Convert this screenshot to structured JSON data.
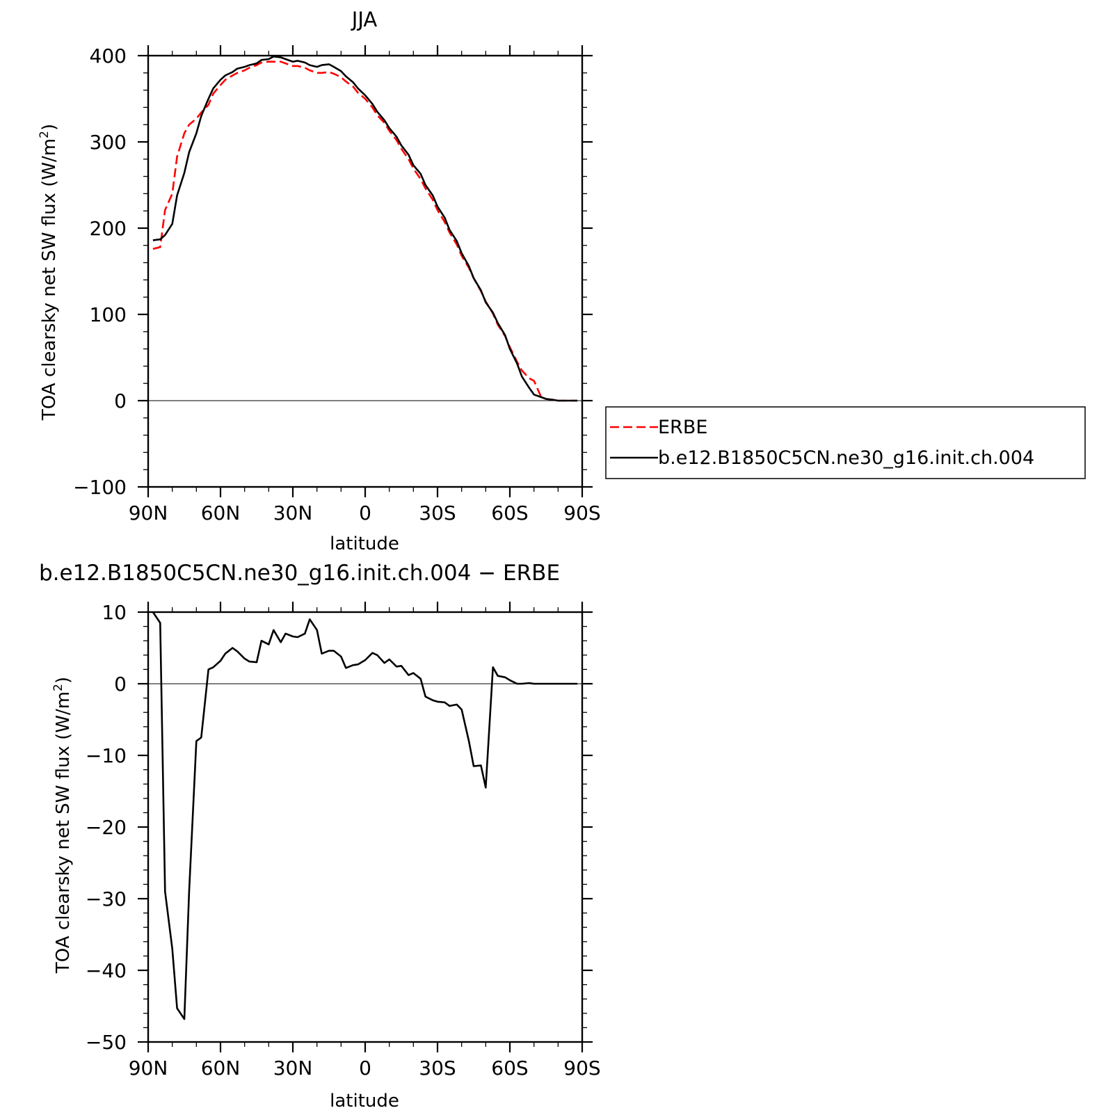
{
  "chart_data": [
    {
      "type": "line",
      "title": "JJA",
      "xlabel": "latitude",
      "ylabel": "TOA clearsky net SW flux (W/m",
      "ylabel_sup": "2",
      "ylabel_close": ")",
      "xlim": [
        90,
        -90
      ],
      "ylim": [
        -100,
        400
      ],
      "x_ticks": [
        {
          "value": 90,
          "label": "90N"
        },
        {
          "value": 60,
          "label": "60N"
        },
        {
          "value": 30,
          "label": "30N"
        },
        {
          "value": 0,
          "label": "0"
        },
        {
          "value": -30,
          "label": "30S"
        },
        {
          "value": -60,
          "label": "60S"
        },
        {
          "value": -90,
          "label": "90S"
        }
      ],
      "y_ticks": [
        {
          "value": 400,
          "label": "400"
        },
        {
          "value": 300,
          "label": "300"
        },
        {
          "value": 200,
          "label": "200"
        },
        {
          "value": 100,
          "label": "100"
        },
        {
          "value": 0,
          "label": "0"
        },
        {
          "value": -100,
          "label": "−100"
        }
      ],
      "legend_position": "right",
      "series": [
        {
          "name": "ERBE",
          "color": "#ff0000",
          "dash": true,
          "x": [
            88,
            85,
            83,
            80,
            78,
            75,
            73,
            70,
            68,
            65,
            63,
            60,
            58,
            55,
            53,
            50,
            48,
            45,
            43,
            40,
            38,
            35,
            33,
            30,
            28,
            25,
            23,
            20,
            18,
            15,
            13,
            10,
            8,
            5,
            3,
            0,
            -3,
            -5,
            -8,
            -10,
            -13,
            -15,
            -18,
            -20,
            -23,
            -25,
            -28,
            -30,
            -33,
            -35,
            -38,
            -40,
            -43,
            -45,
            -48,
            -50,
            -53,
            -55,
            -58,
            -60,
            -63,
            -65,
            -68,
            -70,
            -73,
            -75,
            -78,
            -80,
            -83,
            -85,
            -88
          ],
          "y": [
            176,
            178,
            221,
            240,
            283,
            310,
            320,
            327,
            334,
            343,
            356,
            366,
            372,
            377,
            380,
            383,
            386,
            389,
            392,
            393,
            393,
            393,
            391,
            388,
            388,
            386,
            383,
            380,
            380,
            381,
            379,
            375,
            370,
            364,
            357,
            350,
            340,
            331,
            322,
            313,
            302,
            292,
            280,
            269,
            257,
            246,
            233,
            221,
            207,
            195,
            181,
            168,
            154,
            142,
            127,
            115,
            101,
            88,
            75,
            62,
            45,
            35,
            26,
            23,
            4,
            2,
            1,
            0,
            0,
            0,
            0
          ]
        },
        {
          "name": "b.e12.B1850C5CN.ne30_g16.init.ch.004",
          "color": "#000000",
          "dash": false,
          "x": [
            88,
            85,
            83,
            80,
            78,
            75,
            73,
            70,
            68,
            65,
            63,
            60,
            58,
            55,
            53,
            50,
            48,
            45,
            43,
            40,
            38,
            35,
            33,
            30,
            28,
            25,
            23,
            20,
            18,
            15,
            13,
            10,
            8,
            5,
            3,
            0,
            -3,
            -5,
            -8,
            -10,
            -13,
            -15,
            -18,
            -20,
            -23,
            -25,
            -28,
            -30,
            -33,
            -35,
            -38,
            -40,
            -43,
            -45,
            -48,
            -50,
            -53,
            -55,
            -58,
            -60,
            -63,
            -65,
            -68,
            -70,
            -73,
            -75,
            -78,
            -80,
            -83,
            -85,
            -88
          ],
          "y": [
            186,
            187,
            192,
            205,
            238,
            264,
            288,
            310,
            330,
            350,
            362,
            372,
            377,
            381,
            385,
            387,
            389,
            391,
            395,
            396,
            399,
            398,
            396,
            393,
            394,
            392,
            389,
            387,
            389,
            390,
            387,
            382,
            376,
            369,
            362,
            354,
            344,
            335,
            325,
            316,
            306,
            296,
            285,
            273,
            263,
            250,
            238,
            225,
            212,
            198,
            185,
            171,
            156,
            142,
            128,
            114,
            102,
            90,
            76,
            60,
            43,
            28,
            15,
            7,
            4,
            2,
            1,
            0,
            0,
            0,
            0
          ]
        }
      ]
    },
    {
      "type": "line",
      "title": "b.e12.B1850C5CN.ne30_g16.init.ch.004 − ERBE",
      "xlabel": "latitude",
      "ylabel": "TOA clearsky net SW flux (W/m",
      "ylabel_sup": "2",
      "ylabel_close": ")",
      "xlim": [
        90,
        -90
      ],
      "ylim": [
        -50,
        10
      ],
      "x_ticks": [
        {
          "value": 90,
          "label": "90N"
        },
        {
          "value": 60,
          "label": "60N"
        },
        {
          "value": 30,
          "label": "30N"
        },
        {
          "value": 0,
          "label": "0"
        },
        {
          "value": -30,
          "label": "30S"
        },
        {
          "value": -60,
          "label": "60S"
        },
        {
          "value": -90,
          "label": "90S"
        }
      ],
      "y_ticks": [
        {
          "value": 10,
          "label": "10"
        },
        {
          "value": 0,
          "label": "0"
        },
        {
          "value": -10,
          "label": "−10"
        },
        {
          "value": -20,
          "label": "−20"
        },
        {
          "value": -30,
          "label": "−30"
        },
        {
          "value": -40,
          "label": "−40"
        },
        {
          "value": -50,
          "label": "−50"
        }
      ],
      "series": [
        {
          "color": "#000000",
          "dash": false,
          "x": [
            88,
            85,
            83,
            80,
            78,
            75,
            73,
            70,
            68,
            65,
            63,
            60,
            58,
            55,
            53,
            50,
            48,
            45,
            43,
            40,
            38,
            35,
            33,
            30,
            28,
            25,
            23,
            20,
            18,
            15,
            13,
            10,
            8,
            5,
            3,
            0,
            -3,
            -5,
            -8,
            -10,
            -13,
            -15,
            -18,
            -20,
            -23,
            -25,
            -28,
            -30,
            -33,
            -35,
            -38,
            -40,
            -43,
            -45,
            -48,
            -50,
            -53,
            -55,
            -58,
            -60,
            -63,
            -65,
            -68,
            -70,
            -73,
            -75,
            -78,
            -80,
            -83,
            -85,
            -88
          ],
          "y": [
            10,
            8.5,
            -29,
            -37,
            -45.3,
            -46.8,
            -29,
            -8,
            -7.5,
            2,
            2.3,
            3.2,
            4.2,
            5,
            4.5,
            3.5,
            3.1,
            3,
            6,
            5.5,
            7.5,
            5.8,
            7,
            6.6,
            6.5,
            7,
            9,
            7.5,
            4.2,
            4.6,
            4.6,
            3.8,
            2.2,
            2.6,
            2.7,
            3.3,
            4.3,
            4,
            2.9,
            3.4,
            2.4,
            2.5,
            1.2,
            1.5,
            0.7,
            -1.8,
            -2.3,
            -2.5,
            -2.6,
            -3.1,
            -2.9,
            -3.6,
            -8,
            -11.5,
            -11.4,
            -14.5,
            2.3,
            1.1,
            0.9,
            0.5,
            0,
            0,
            0.1,
            0,
            0,
            0,
            0,
            0,
            0,
            0,
            0
          ]
        }
      ]
    }
  ]
}
